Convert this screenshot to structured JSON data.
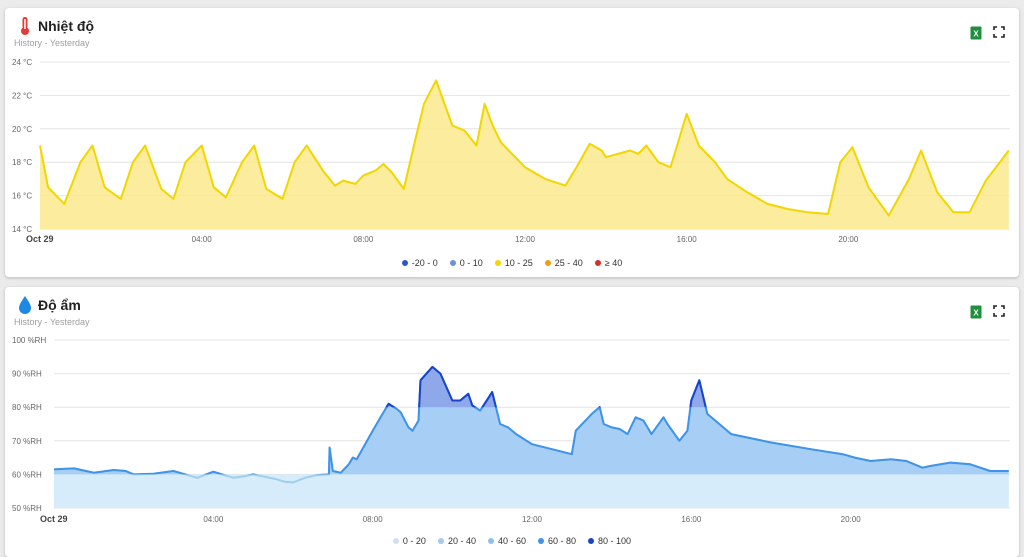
{
  "colors": {
    "temp_line": "#f2d600",
    "temp_fill": "#fbe98c",
    "hum_fill_low": "#d6ecfb",
    "hum_fill_mid": "#a7cff5",
    "hum_line": "#3f93e8",
    "hum_line_high": "#1a44c8",
    "hum_fill_high": "#8ea8ea",
    "excel_green": "#1e8f3c"
  },
  "panels": {
    "temp": {
      "title": "Nhiệt độ",
      "subtitle": "History - Yesterday",
      "icon": "thermometer-icon",
      "legend": [
        {
          "label": "-20 - 0",
          "color": "#2b55c9"
        },
        {
          "label": "0 - 10",
          "color": "#6f8fe0"
        },
        {
          "label": "10 - 25",
          "color": "#f2d600"
        },
        {
          "label": "25 - 40",
          "color": "#f39c12"
        },
        {
          "label": "≥ 40",
          "color": "#d32f2f"
        }
      ]
    },
    "hum": {
      "title": "Độ ẩm",
      "subtitle": "History - Yesterday",
      "icon": "water-drop-icon",
      "legend": [
        {
          "label": "0 - 20",
          "color": "#cfe0f5"
        },
        {
          "label": "20 - 40",
          "color": "#a8c6f0"
        },
        {
          "label": "40 - 60",
          "color": "#8fc0f0"
        },
        {
          "label": "60 - 80",
          "color": "#3f93e8"
        },
        {
          "label": "80 - 100",
          "color": "#1a44c8"
        }
      ]
    }
  },
  "chart_data": [
    {
      "type": "area",
      "title": "Nhiệt độ",
      "xlabel": "",
      "ylabel": "",
      "y_unit": "°C",
      "ylim": [
        14,
        24
      ],
      "y_ticks": [
        "14 °C",
        "16 °C",
        "18 °C",
        "20 °C",
        "22 °C",
        "24 °C"
      ],
      "x_ticks": [
        "Oct 29",
        "04:00",
        "08:00",
        "12:00",
        "16:00",
        "20:00"
      ],
      "grid": true,
      "series": [
        {
          "x": [
            0,
            0.2,
            0.6,
            1.0,
            1.3,
            1.6,
            2.0,
            2.3,
            2.6,
            3.0,
            3.3,
            3.6,
            4.0,
            4.3,
            4.6,
            5.0,
            5.3,
            5.6,
            6.0,
            6.3,
            6.6,
            7.0,
            7.3,
            7.5,
            7.8,
            8.0,
            8.3,
            8.5,
            8.7,
            9.0,
            9.3,
            9.5,
            9.8,
            10.2,
            10.5,
            10.8,
            11.0,
            11.2,
            11.4,
            11.6,
            12.0,
            12.5,
            13.0,
            13.3,
            13.6,
            13.9,
            14.0,
            14.3,
            14.6,
            14.8,
            15.0,
            15.3,
            15.6,
            16.0,
            16.3,
            16.7,
            17.0,
            17.5,
            18.0,
            18.5,
            19.0,
            19.5,
            19.8,
            20.1,
            20.5,
            21.0,
            21.5,
            21.8,
            22.2,
            22.6,
            23.0,
            23.4,
            23.97
          ],
          "y": [
            19.0,
            16.5,
            15.5,
            18.0,
            19.0,
            16.5,
            15.8,
            18.0,
            19.0,
            16.4,
            15.8,
            18.0,
            19.0,
            16.5,
            15.9,
            18.0,
            19.0,
            16.4,
            15.8,
            18.0,
            19.0,
            17.5,
            16.6,
            16.9,
            16.7,
            17.2,
            17.5,
            17.9,
            17.4,
            16.4,
            19.5,
            21.5,
            22.9,
            20.2,
            19.9,
            19.0,
            21.5,
            20.2,
            19.2,
            18.7,
            17.7,
            17.0,
            16.6,
            17.8,
            19.1,
            18.7,
            18.3,
            18.5,
            18.7,
            18.5,
            19.0,
            18.0,
            17.7,
            20.9,
            19.0,
            18.0,
            17.0,
            16.2,
            15.5,
            15.2,
            15.0,
            14.9,
            18.0,
            18.9,
            16.5,
            14.8,
            17.0,
            18.7,
            16.2,
            15.0,
            15.0,
            16.9,
            18.7
          ]
        }
      ]
    },
    {
      "type": "area",
      "title": "Độ ẩm",
      "xlabel": "",
      "ylabel": "",
      "y_unit": "%RH",
      "ylim": [
        50,
        100
      ],
      "y_ticks": [
        "50 %RH",
        "60 %RH",
        "70 %RH",
        "80 %RH",
        "90 %RH",
        "100 %RH"
      ],
      "x_ticks": [
        "Oct 29",
        "04:00",
        "08:00",
        "12:00",
        "16:00",
        "20:00"
      ],
      "grid": true,
      "series": [
        {
          "x": [
            0,
            0.5,
            0.8,
            1.0,
            1.5,
            1.8,
            2.0,
            2.5,
            3.0,
            3.3,
            3.6,
            4.0,
            4.5,
            4.8,
            5.0,
            5.3,
            5.6,
            5.8,
            6.0,
            6.3,
            6.6,
            6.9,
            6.92,
            7.0,
            7.2,
            7.4,
            7.5,
            7.6,
            8.0,
            8.2,
            8.4,
            8.6,
            8.7,
            8.9,
            9.0,
            9.15,
            9.2,
            9.5,
            9.7,
            10.0,
            10.2,
            10.4,
            10.5,
            10.7,
            11.0,
            11.2,
            11.4,
            11.6,
            12.0,
            12.5,
            13.0,
            13.1,
            13.5,
            13.7,
            13.8,
            14.0,
            14.2,
            14.4,
            14.6,
            14.8,
            15.0,
            15.3,
            15.4,
            15.7,
            15.9,
            16.0,
            16.2,
            16.4,
            17.0,
            18.0,
            19.0,
            19.8,
            20.1,
            20.5,
            21.0,
            21.4,
            21.8,
            22.0,
            22.5,
            23.0,
            23.5,
            23.97
          ],
          "y": [
            61.5,
            61.8,
            61.0,
            60.5,
            61.3,
            61.0,
            60.0,
            60.2,
            61.0,
            60.0,
            59.0,
            60.8,
            59.0,
            59.5,
            60.0,
            59.3,
            58.5,
            57.8,
            57.6,
            59.0,
            59.8,
            60.0,
            68.0,
            61.0,
            60.5,
            63.0,
            65.0,
            64.5,
            73.0,
            77.0,
            81.0,
            79.5,
            78.5,
            74.0,
            73.0,
            76.0,
            88.0,
            92.0,
            90.0,
            82.0,
            82.0,
            84.0,
            80.5,
            79.0,
            84.5,
            75.0,
            74.0,
            72.0,
            69.0,
            67.5,
            66.0,
            73.0,
            78.0,
            80.0,
            75.0,
            74.0,
            73.5,
            72.0,
            77.0,
            76.0,
            72.0,
            77.0,
            75.0,
            70.0,
            73.0,
            82.0,
            88.0,
            78.0,
            72.0,
            69.5,
            67.5,
            66.0,
            65.0,
            64.0,
            64.5,
            64.0,
            62.0,
            62.5,
            63.5,
            63.0,
            61.0,
            61.0
          ]
        }
      ]
    }
  ]
}
